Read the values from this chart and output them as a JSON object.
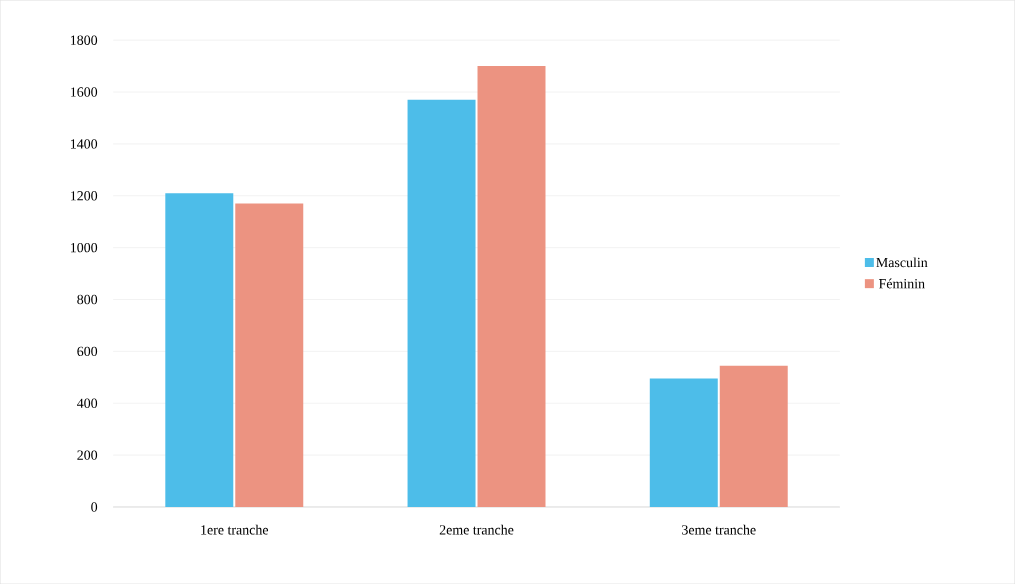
{
  "chart_data": {
    "type": "bar",
    "categories": [
      "1ere tranche",
      "2eme tranche",
      "3eme tranche"
    ],
    "series": [
      {
        "name": "Masculin",
        "color": "#4dbde9",
        "values": [
          1210,
          1570,
          495
        ]
      },
      {
        "name": "Féminin",
        "color": "#ec9381",
        "values": [
          1170,
          1700,
          545
        ]
      }
    ],
    "ylim": [
      0,
      1800
    ],
    "yticks": [
      0,
      200,
      400,
      600,
      800,
      1000,
      1200,
      1400,
      1600,
      1800
    ],
    "grid": "y",
    "legend": "right"
  }
}
